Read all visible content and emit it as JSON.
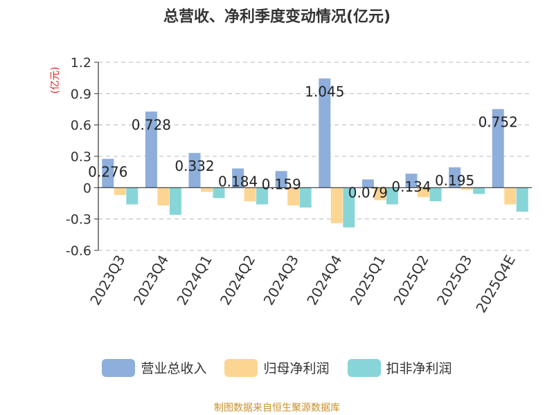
{
  "chart_data": {
    "type": "bar",
    "title": "总营收、净利季度变动情况(亿元)",
    "ylabel": "(亿元)",
    "ylim": [
      -0.6,
      1.2
    ],
    "yticks": [
      "1.2",
      "0.9",
      "0.6",
      "0.3",
      "0",
      "-0.3",
      "-0.6"
    ],
    "ytick_values": [
      1.2,
      0.9,
      0.6,
      0.3,
      0,
      -0.3,
      -0.6
    ],
    "grid": true,
    "legend_position": "bottom",
    "categories": [
      "2023Q3",
      "2023Q4",
      "2024Q1",
      "2024Q2",
      "2024Q3",
      "2024Q4",
      "2025Q1",
      "2025Q2",
      "2025Q3",
      "2025Q4E"
    ],
    "series": [
      {
        "name": "营业总收入",
        "color": "#8eaedb",
        "values": [
          0.276,
          0.728,
          0.332,
          0.184,
          0.159,
          1.045,
          0.079,
          0.134,
          0.195,
          0.752
        ],
        "labels": [
          "0.276",
          "0.728",
          "0.332",
          "0.184",
          "0.159",
          "1.045",
          "0.079",
          "0.134",
          "0.195",
          "0.752"
        ]
      },
      {
        "name": "归母净利润",
        "color": "#fdd593",
        "values": [
          -0.07,
          -0.17,
          -0.04,
          -0.13,
          -0.17,
          -0.34,
          -0.12,
          -0.09,
          -0.02,
          -0.16
        ]
      },
      {
        "name": "扣非净利润",
        "color": "#88d5d8",
        "values": [
          -0.16,
          -0.26,
          -0.1,
          -0.16,
          -0.19,
          -0.38,
          -0.16,
          -0.13,
          -0.06,
          -0.23
        ]
      }
    ]
  },
  "source": "制图数据来自恒生聚源数据库"
}
